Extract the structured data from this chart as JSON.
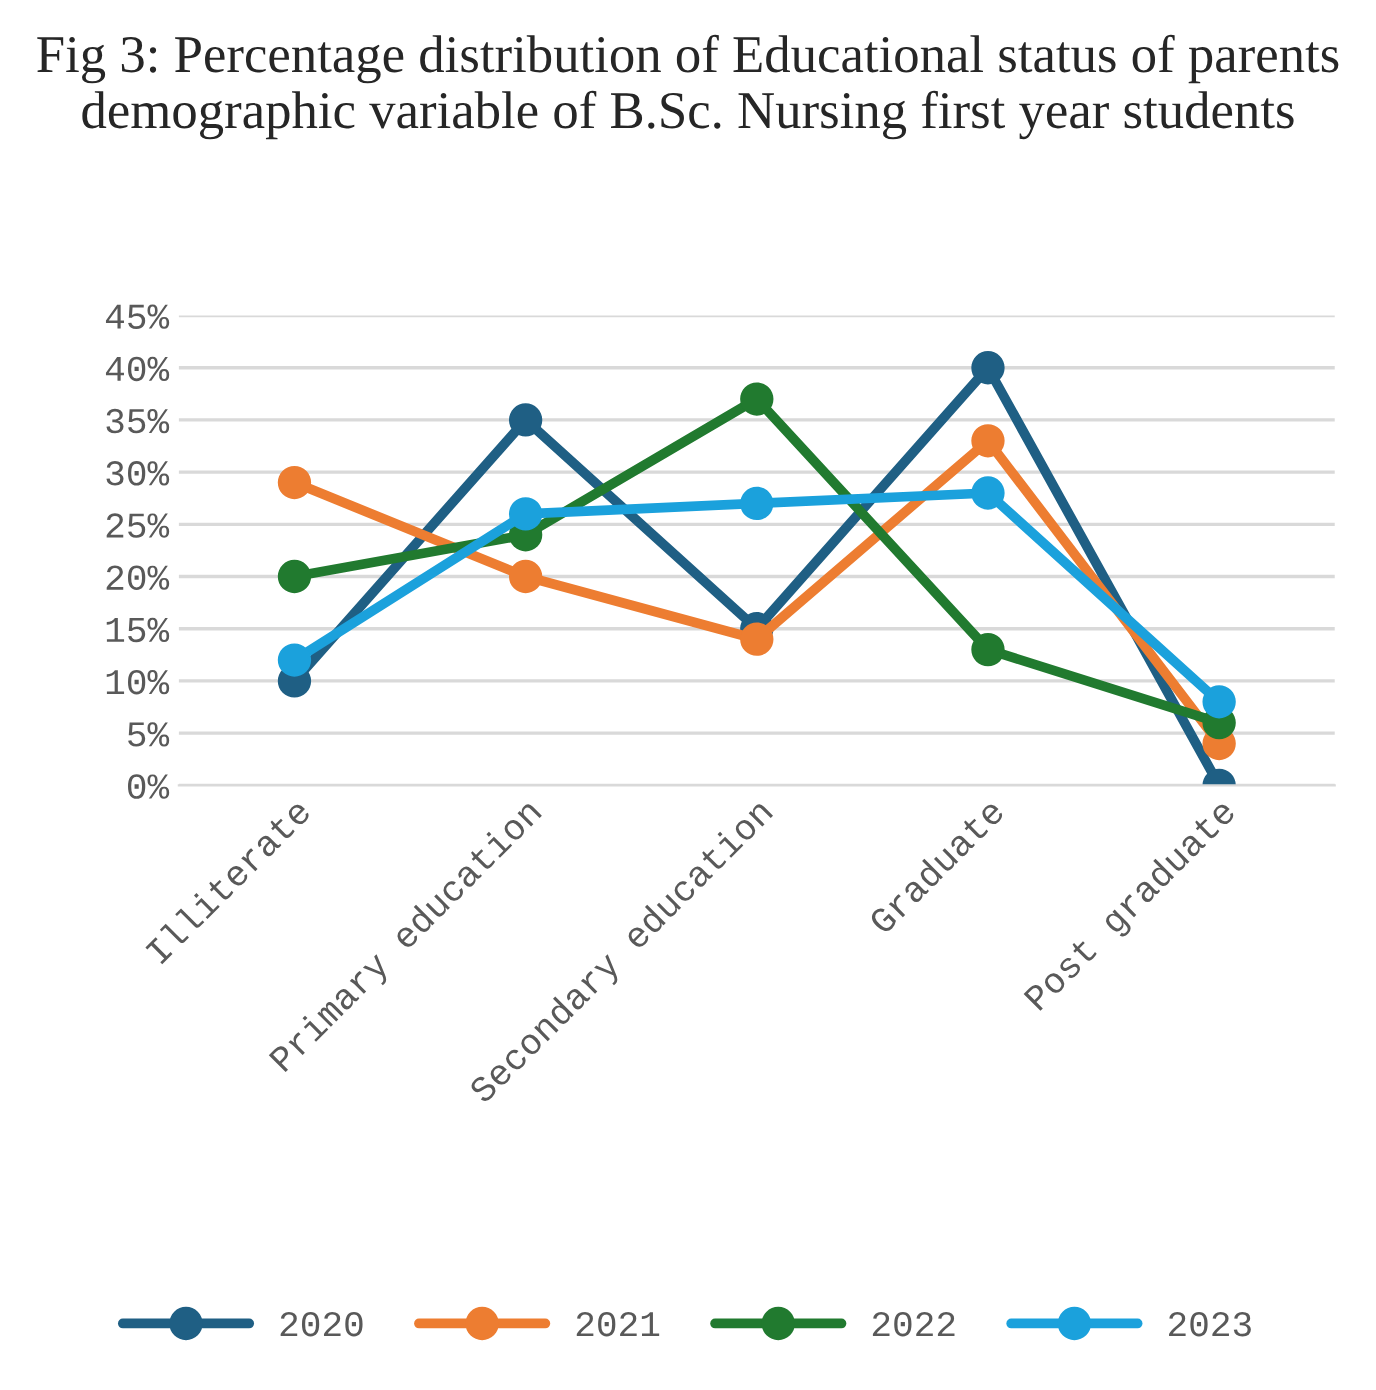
{
  "chart_data": {
    "type": "line",
    "title": "Fig 3: Percentage distribution of Educational status of parents demographic variable of B.Sc. Nursing first year students",
    "categories": [
      "Illiterate",
      "Primary education",
      "Secondary education",
      "Graduate",
      "Post graduate"
    ],
    "series": [
      {
        "name": "2020",
        "color": "#1f5f84",
        "values": [
          10,
          35,
          15,
          40,
          0
        ]
      },
      {
        "name": "2021",
        "color": "#ed7d31",
        "values": [
          29,
          20,
          14,
          33,
          4
        ]
      },
      {
        "name": "2022",
        "color": "#217a2f",
        "values": [
          20,
          24,
          37,
          13,
          6
        ]
      },
      {
        "name": "2023",
        "color": "#1ba1dc",
        "values": [
          12,
          26,
          27,
          28,
          8
        ]
      }
    ],
    "ylim": [
      0,
      45
    ],
    "yticks": [
      {
        "value": 0,
        "label": "0%"
      },
      {
        "value": 5,
        "label": "5%"
      },
      {
        "value": 10,
        "label": "10%"
      },
      {
        "value": 15,
        "label": "15%"
      },
      {
        "value": 20,
        "label": "20%"
      },
      {
        "value": 25,
        "label": "25%"
      },
      {
        "value": 30,
        "label": "30%"
      },
      {
        "value": 35,
        "label": "35%"
      },
      {
        "value": 40,
        "label": "40%"
      },
      {
        "value": 45,
        "label": "45%"
      }
    ],
    "grid": "y",
    "legend": "bottom",
    "marker": "circle",
    "line_style": "solid"
  }
}
